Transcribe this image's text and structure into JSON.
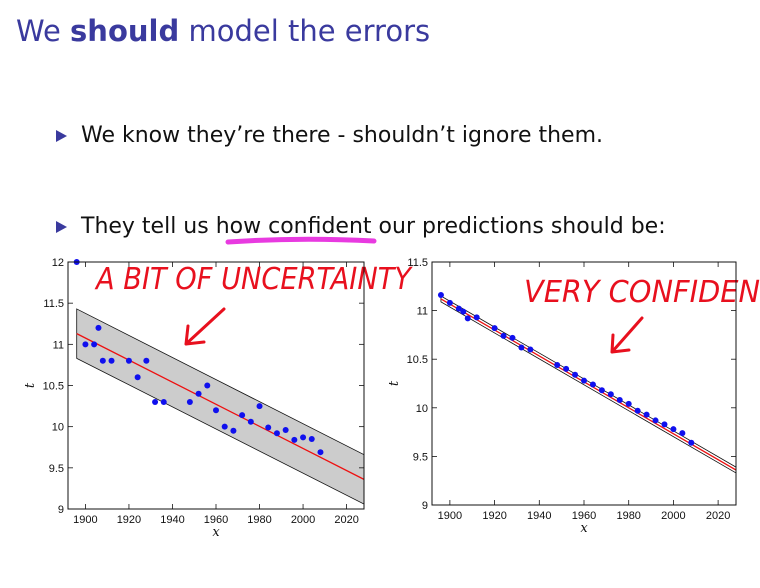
{
  "slide": {
    "title_pre": "We ",
    "title_bold": "should",
    "title_post": " model the errors",
    "bullet1": "We know they’re there - shouldn’t ignore them.",
    "bullet2_pre": "They tell us ",
    "bullet2_highlight": "how confident",
    "bullet2_post": " our predictions should be:",
    "annotation_left": "A BIT OF UNCERTAINTY",
    "annotation_right": "VERY CONFIDEN",
    "colors": {
      "title": "#3a3a9e",
      "annotation": "#e8101e",
      "highlight": "#e83ae0",
      "points": "#1010ee",
      "fit": "#ee1010",
      "band": "#cccccc"
    }
  },
  "chart_data": [
    {
      "type": "scatter",
      "xlabel": "x",
      "ylabel": "t",
      "xlim": [
        1892,
        2028
      ],
      "ylim": [
        9,
        12
      ],
      "xticks": [
        1900,
        1920,
        1940,
        1960,
        1980,
        2000,
        2020
      ],
      "yticks": [
        9,
        9.5,
        10,
        10.5,
        11,
        11.5,
        12
      ],
      "ytick_labels": [
        "9",
        "9.5",
        "10",
        "10.5",
        "11",
        "11.5",
        "12"
      ],
      "points": [
        [
          1896,
          12.0
        ],
        [
          1900,
          11.0
        ],
        [
          1904,
          11.0
        ],
        [
          1906,
          11.2
        ],
        [
          1908,
          10.8
        ],
        [
          1912,
          10.8
        ],
        [
          1920,
          10.8
        ],
        [
          1924,
          10.6
        ],
        [
          1928,
          10.8
        ],
        [
          1932,
          10.3
        ],
        [
          1936,
          10.3
        ],
        [
          1948,
          10.3
        ],
        [
          1952,
          10.4
        ],
        [
          1956,
          10.5
        ],
        [
          1960,
          10.2
        ],
        [
          1964,
          10.0
        ],
        [
          1968,
          9.95
        ],
        [
          1972,
          10.14
        ],
        [
          1976,
          10.06
        ],
        [
          1980,
          10.25
        ],
        [
          1984,
          9.99
        ],
        [
          1988,
          9.92
        ],
        [
          1992,
          9.96
        ],
        [
          1996,
          9.84
        ],
        [
          2000,
          9.87
        ],
        [
          2004,
          9.85
        ],
        [
          2008,
          9.69
        ]
      ],
      "fit": {
        "x": [
          1896,
          2028
        ],
        "y": [
          11.13,
          9.36
        ]
      },
      "band": {
        "halfwidth": 0.3
      }
    },
    {
      "type": "scatter",
      "xlabel": "x",
      "ylabel": "t",
      "xlim": [
        1892,
        2028
      ],
      "ylim": [
        9,
        11.5
      ],
      "xticks": [
        1900,
        1920,
        1940,
        1960,
        1980,
        2000,
        2020
      ],
      "yticks": [
        9,
        9.5,
        10,
        10.5,
        11,
        11.5
      ],
      "ytick_labels": [
        "9",
        "9.5",
        "10",
        "10.5",
        "11",
        "11.5"
      ],
      "points": [
        [
          1896,
          11.16
        ],
        [
          1900,
          11.08
        ],
        [
          1904,
          11.02
        ],
        [
          1906,
          10.99
        ],
        [
          1908,
          10.92
        ],
        [
          1912,
          10.93
        ],
        [
          1920,
          10.82
        ],
        [
          1924,
          10.74
        ],
        [
          1928,
          10.72
        ],
        [
          1932,
          10.62
        ],
        [
          1936,
          10.6
        ],
        [
          1948,
          10.44
        ],
        [
          1952,
          10.4
        ],
        [
          1956,
          10.34
        ],
        [
          1960,
          10.28
        ],
        [
          1964,
          10.24
        ],
        [
          1968,
          10.18
        ],
        [
          1972,
          10.14
        ],
        [
          1976,
          10.08
        ],
        [
          1980,
          10.04
        ],
        [
          1984,
          9.97
        ],
        [
          1988,
          9.93
        ],
        [
          1992,
          9.87
        ],
        [
          1996,
          9.83
        ],
        [
          2000,
          9.78
        ],
        [
          2004,
          9.74
        ],
        [
          2008,
          9.64
        ]
      ],
      "fit": {
        "x": [
          1896,
          2028
        ],
        "y": [
          11.12,
          9.36
        ]
      },
      "band": {
        "halfwidth": 0.03
      }
    }
  ]
}
